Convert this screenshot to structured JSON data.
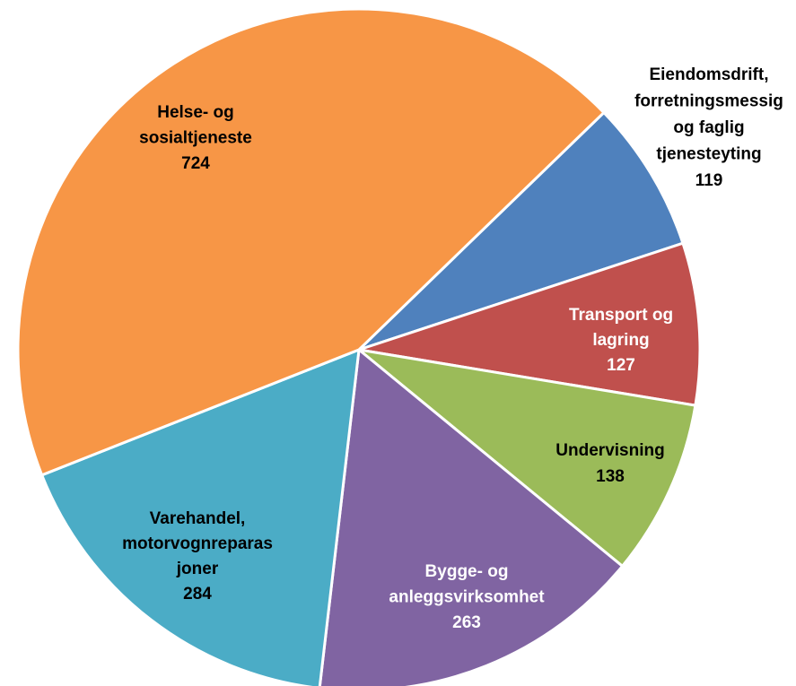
{
  "chart_data": {
    "type": "pie",
    "categories": [
      [
        "Eiendomsdrift,",
        "forretningsmessig",
        "og faglig",
        "tjenesteyting"
      ],
      [
        "Transport og",
        "lagring"
      ],
      [
        "Undervisning"
      ],
      [
        "Bygge- og",
        "anleggsvirksomhet"
      ],
      [
        "Varehandel,",
        "motorvognreparas",
        "joner"
      ],
      [
        "Helse- og",
        "sosialtjeneste"
      ]
    ],
    "values": [
      119,
      127,
      138,
      263,
      284,
      724
    ],
    "colors": [
      "#4f81bd",
      "#c0504d",
      "#9bbb59",
      "#8064a2",
      "#4bacc6",
      "#f79646"
    ]
  }
}
